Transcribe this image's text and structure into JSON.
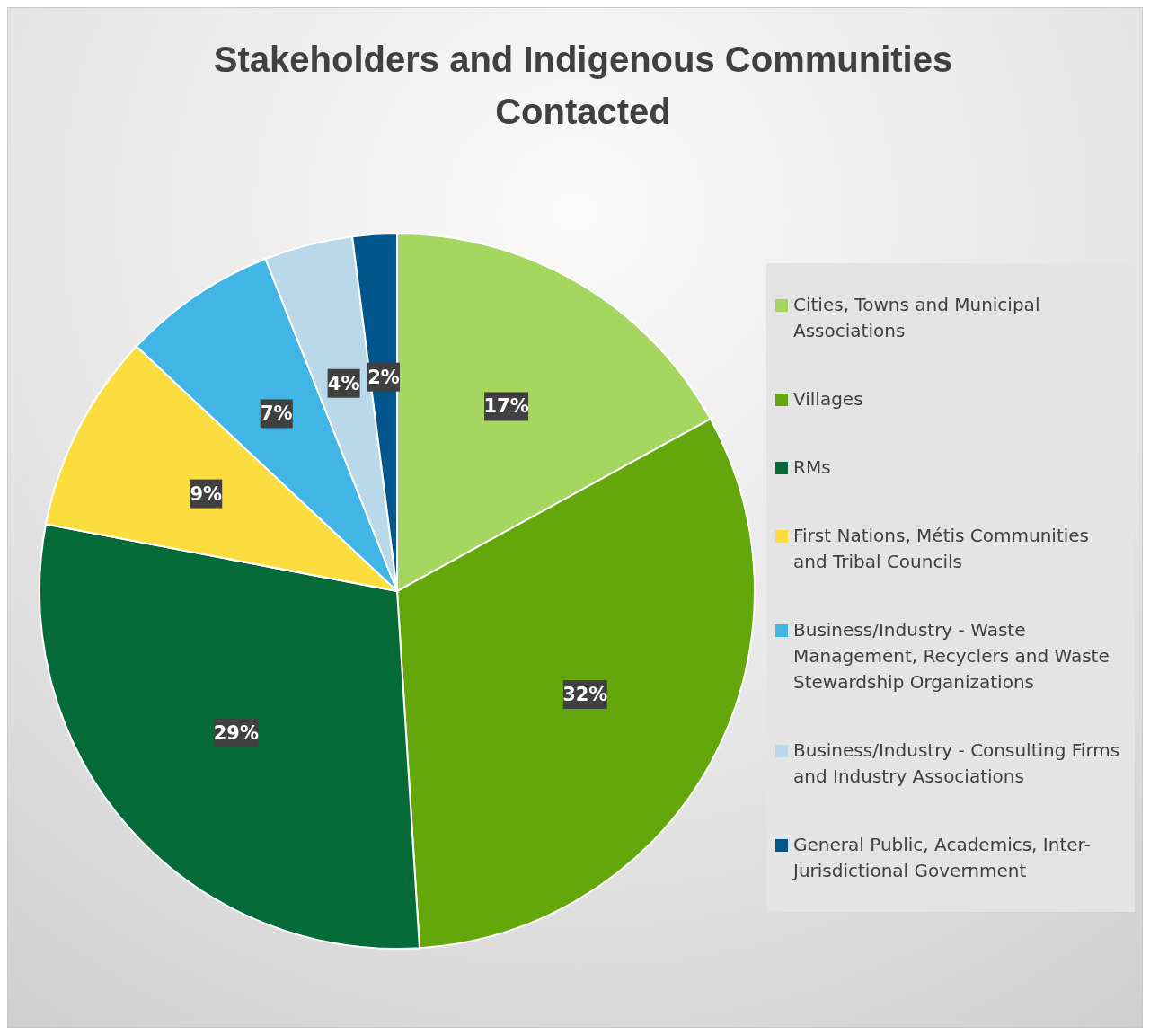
{
  "chart_data": {
    "type": "pie",
    "title": "Stakeholders and Indigenous Communities Contacted",
    "categories": [
      "Cities, Towns and Municipal Associations",
      "Villages",
      "RMs",
      "First Nations, Métis Communities and Tribal Councils",
      "Business/Industry - Waste Management, Recyclers and Waste Stewardship Organizations",
      "Business/Industry - Consulting Firms and Industry Associations",
      "General Public, Academics, Inter-Jurisdictional Government"
    ],
    "values": [
      17,
      32,
      29,
      9,
      7,
      4,
      2
    ],
    "value_labels": [
      "17%",
      "32%",
      "29%",
      "9%",
      "7%",
      "4%",
      "2%"
    ],
    "colors": [
      "#a5d65f",
      "#64a70b",
      "#046a38",
      "#fbdd40",
      "#41b6e6",
      "#b9d9eb",
      "#00558c"
    ],
    "legend": "right"
  }
}
